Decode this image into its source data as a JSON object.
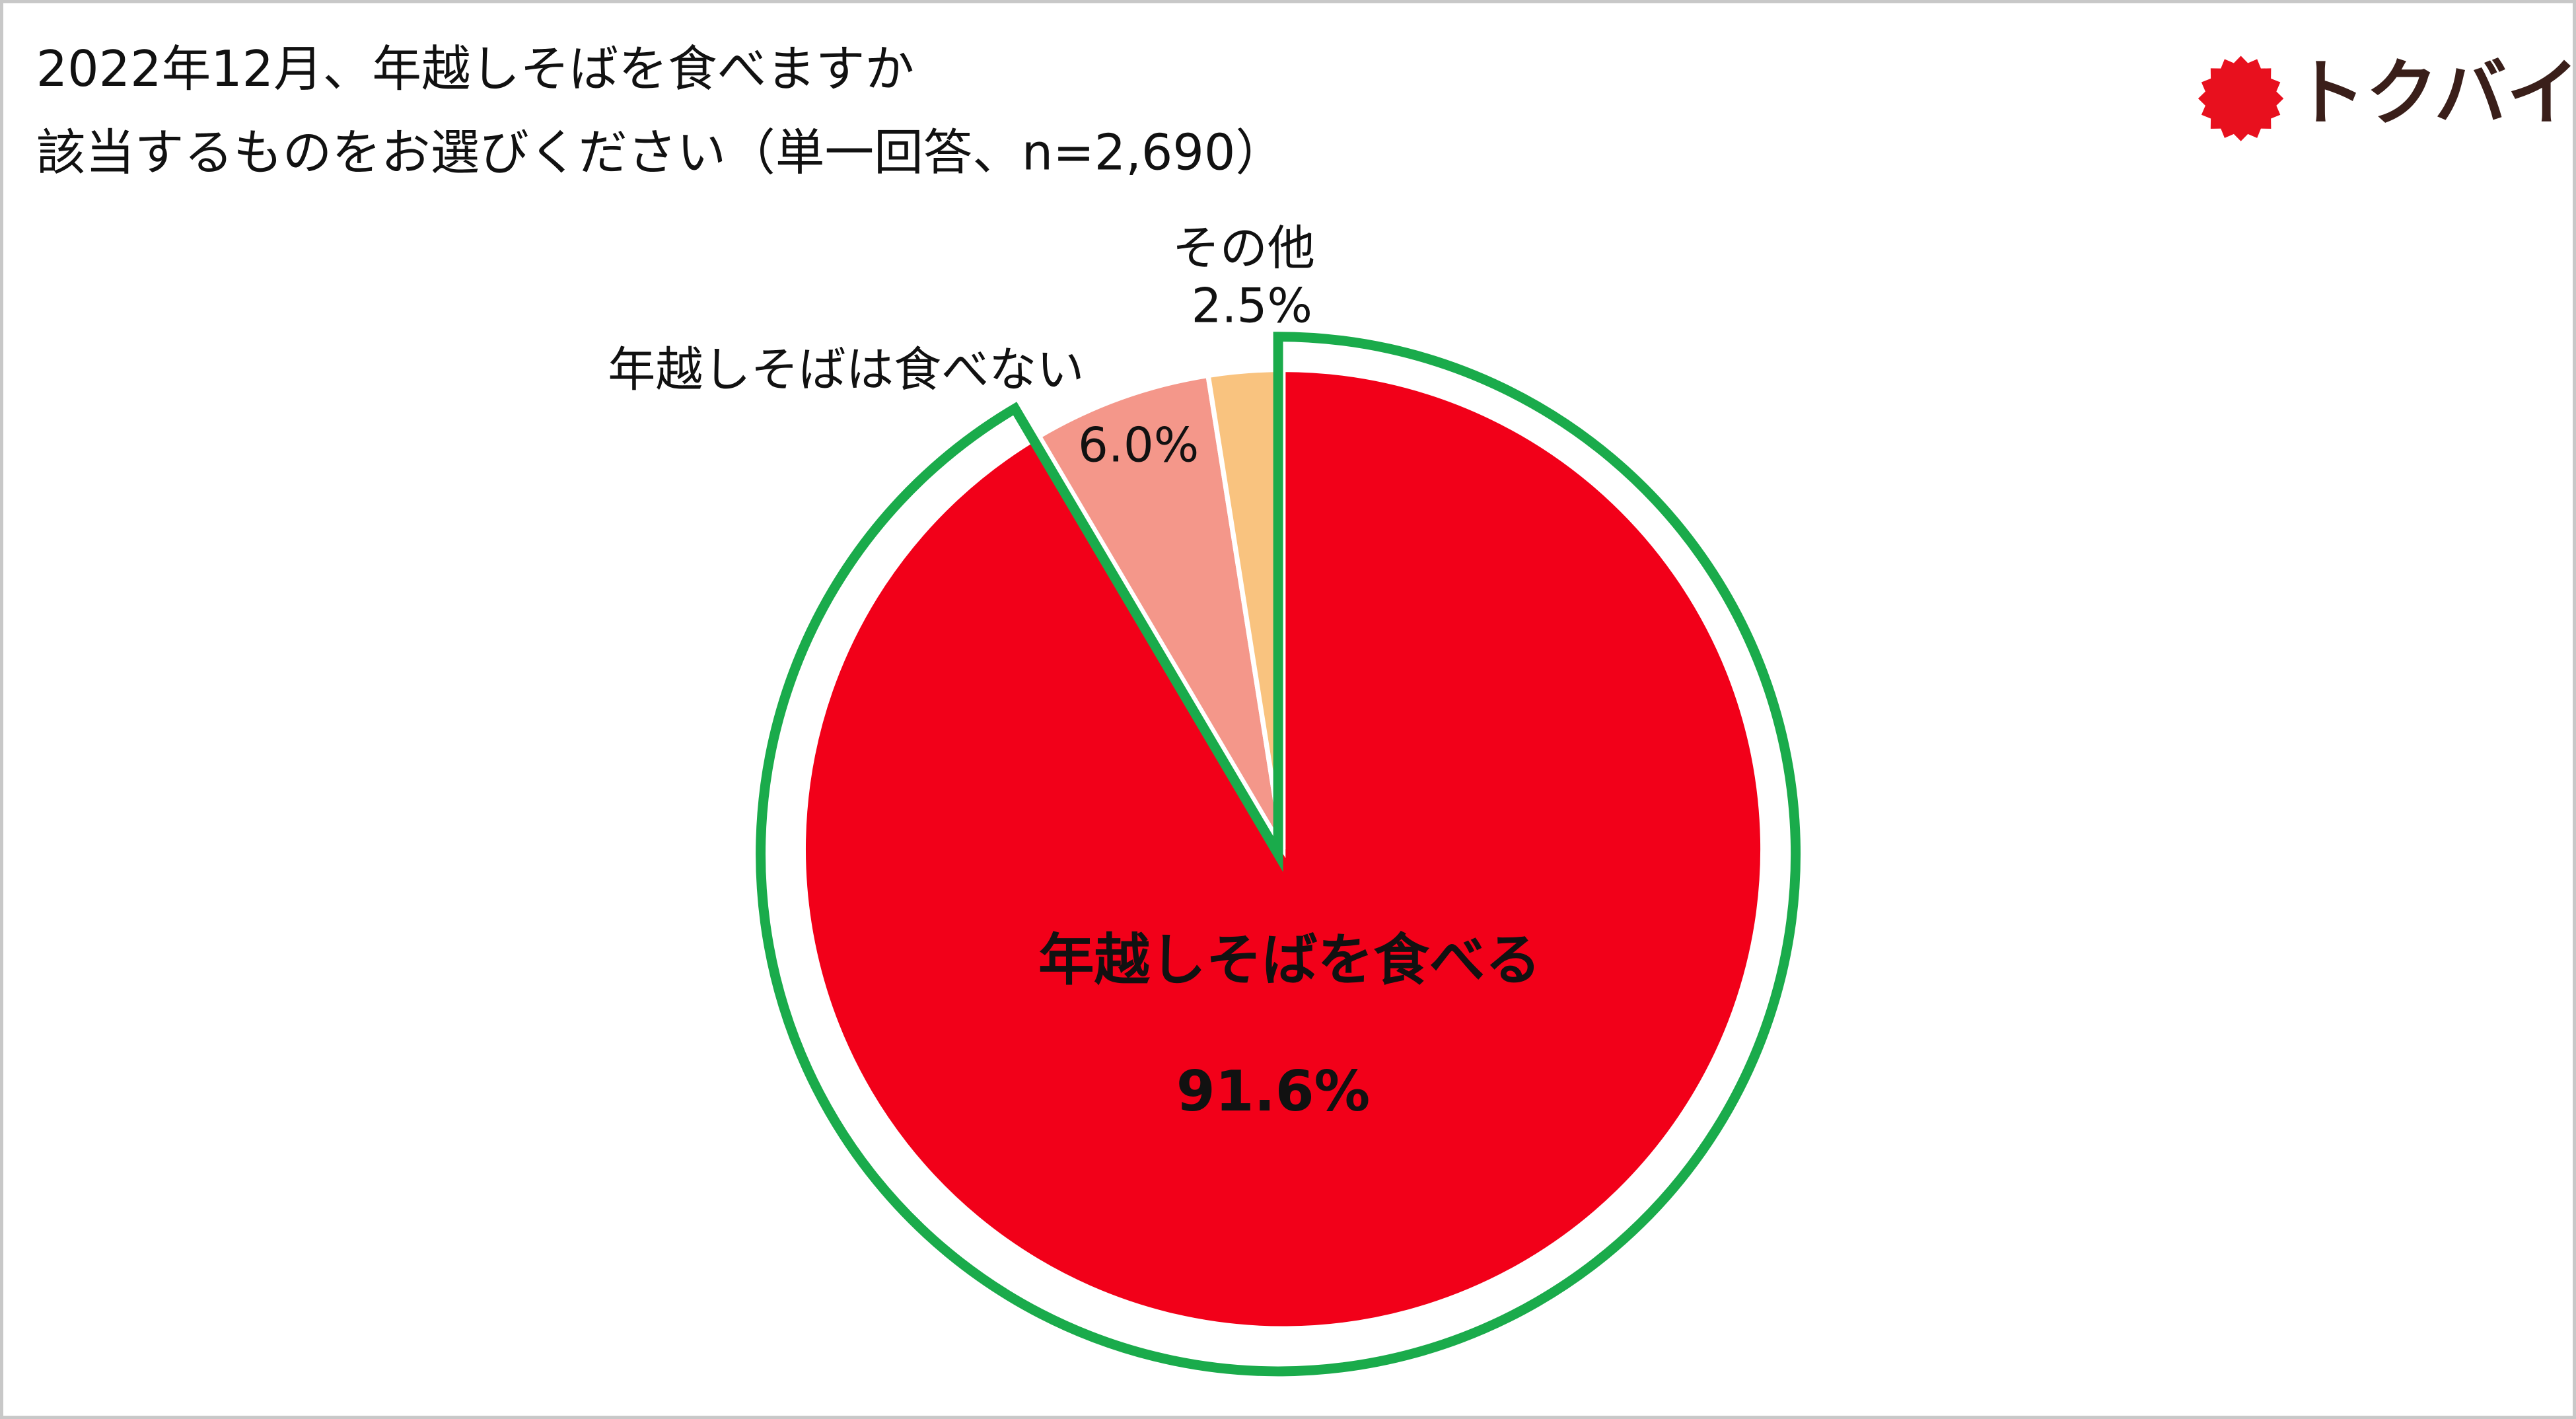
{
  "chart_data": {
    "type": "pie",
    "title": "2022年12月、年越しそばを食べますか",
    "subtitle": "該当するものをお選びください（単一回答、n=2,690）",
    "categories": [
      "年越しそばを食べる",
      "年越しそばは食べない",
      "その他"
    ],
    "values": [
      91.6,
      6.0,
      2.5
    ],
    "value_labels": [
      "91.6%",
      "6.0%",
      "2.5%"
    ],
    "colors": [
      "#f20019",
      "#f4978a",
      "#f9c37f"
    ],
    "highlight_color": "#1aab4b"
  },
  "logo": "トクバイ"
}
